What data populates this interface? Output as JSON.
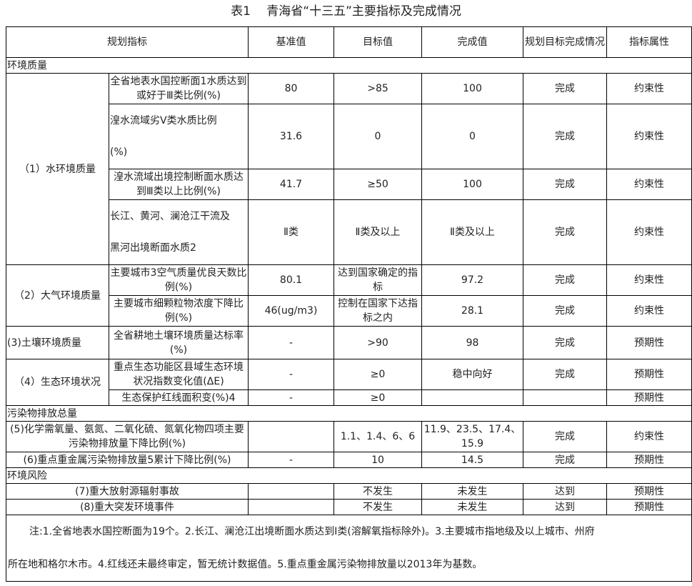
{
  "title": "表1　 青海省“十三五”主要指标及完成情况",
  "headers": [
    "规划指标",
    "基准值",
    "目标值",
    "完成值",
    "规划目标完成情况",
    "指标属性"
  ],
  "sections": {
    "env_quality": "环境质量",
    "pollutants": "污染物排放总量",
    "risk": "环境风险"
  },
  "groups": [
    "（1）水环境质量",
    "（2）大气环境质量",
    "(3)土壤环境质量",
    "（4）生态环境状况"
  ],
  "rows": [
    {
      "indicator": "全省地表水国控断面1水质达到或好于Ⅲ类比例(%)",
      "base": "80",
      "target": ">85",
      "actual": "100",
      "status": "完成",
      "attr": "约束性"
    },
    {
      "indicator": "湟水流域劣V类水质比例",
      "indicator2": "(%)",
      "base": "31.6",
      "target": "0",
      "actual": "0",
      "status": "完成",
      "attr": "约束性"
    },
    {
      "indicator": "湟水流域出境控制断面水质达到Ⅲ类以上比例(%)",
      "base": "41.7",
      "target": "≥50",
      "actual": "100",
      "status": "完成",
      "attr": "约束性"
    },
    {
      "indicator": "长江、黄河、澜沧江干流及",
      "indicator2": "黑河出境断面水质2",
      "base": "Ⅱ类",
      "target": "Ⅱ类及以上",
      "actual": "Ⅱ类及以上",
      "status": "完成",
      "attr": "约束性"
    },
    {
      "indicator": "主要城市3空气质量优良天数比例(%)",
      "base": "80.1",
      "target": "达到国家确定的指标",
      "actual": "97.2",
      "status": "完成",
      "attr": "约束性"
    },
    {
      "indicator": "主要城市细颗粒物浓度下降比例(%)",
      "base": "46(ug/m3)",
      "target": "控制在国家下达指标之内",
      "actual": "28.1",
      "status": "完成",
      "attr": "约束性"
    },
    {
      "indicator": "全省耕地土壤环境质量达标率(%)",
      "base": "-",
      "target": ">90",
      "actual": "98",
      "status": "完成",
      "attr": "预期性"
    },
    {
      "indicator": "重点生态功能区县域生态环境状况指数变化值(ΔE)",
      "base": "-",
      "target": "≥0",
      "actual": "稳中向好",
      "status": "完成",
      "attr": "预期性"
    },
    {
      "indicator": "生态保护红线面积变(%)4",
      "base": "-",
      "target": "≥0",
      "actual": "",
      "status": "",
      "attr": "预期性"
    },
    {
      "indicator": "(5)化学需氧量、氨氮、二氧化硫、氮氧化物四项主要污染物排放量下降比例(%)",
      "base": "",
      "target": "1.1、1.4、6、6",
      "actual": "11.9、23.5、17.4、15.9",
      "status": "完成",
      "attr": "约束性"
    },
    {
      "indicator": "(6)重点重金属污染物排放量5累计下降比例(%)",
      "base": "-",
      "target": "10",
      "actual": "14.5",
      "status": "完成",
      "attr": "预期性"
    },
    {
      "indicator": "(7)重大放射源辐射事故",
      "base": "",
      "target": "不发生",
      "actual": "未发生",
      "status": "达到",
      "attr": "预期性"
    },
    {
      "indicator": "(8)重大突发环境事件",
      "base": "",
      "target": "不发生",
      "actual": "未发生",
      "status": "达到",
      "attr": "预期性"
    }
  ],
  "notes": {
    "line1": "注:1.全省地表水国控断面为19个。2.长江、澜沧江出境断面水质达到Ⅰ类(溶解氧指标除外)。3.主要城市指地级及以上城市、州府",
    "line2": "所在地和格尔木市。4.红线还未最终审定，暂无统计数据值。5.重点重金属污染物排放量以2013年为基数。"
  }
}
